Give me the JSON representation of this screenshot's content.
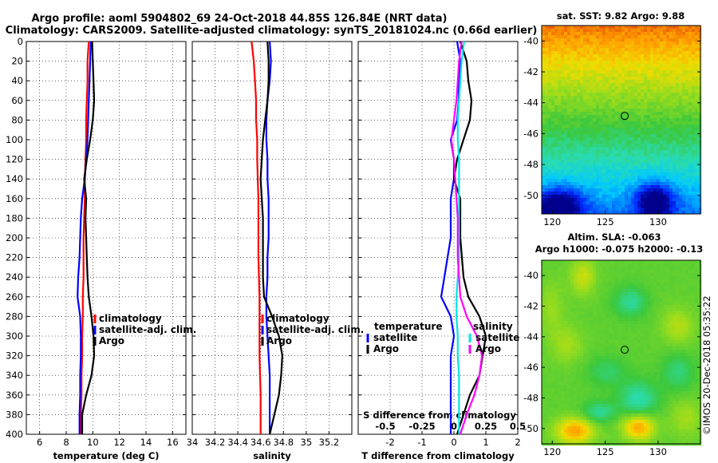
{
  "header": {
    "title_line1": "Argo profile: aoml 5904802_69 24-Oct-2018 44.85S 126.84E (NRT data)",
    "title_line2": "Climatology: CARS2009. Satellite-adjusted climatology: synTS_20181024.nc (0.66d earlier)"
  },
  "timestamp": "©IMOS 20-Dec-2018 05:35:22",
  "colors": {
    "climatology": "#ff0000",
    "satellite": "#0000ff",
    "argo": "#000000",
    "sal_climatology": "#00e5e5",
    "sal_satellite": "#ff00ff",
    "grid": "#000000"
  },
  "chart_data": [
    {
      "type": "line",
      "panel": "temperature",
      "xlabel": "temperature (deg C)",
      "ylabel": "",
      "xlim": [
        5,
        17
      ],
      "ylim": [
        400,
        0
      ],
      "xticks": [
        "6",
        "8",
        "10",
        "12",
        "14",
        "16"
      ],
      "xtick_values": [
        6,
        8,
        10,
        12,
        14,
        16
      ],
      "yticks": [
        "0",
        "20",
        "40",
        "60",
        "80",
        "100",
        "120",
        "140",
        "160",
        "180",
        "200",
        "220",
        "240",
        "260",
        "280",
        "300",
        "320",
        "340",
        "360",
        "380",
        "400"
      ],
      "ytick_values": [
        0,
        20,
        40,
        60,
        80,
        100,
        120,
        140,
        160,
        180,
        200,
        220,
        240,
        260,
        280,
        300,
        320,
        340,
        360,
        380,
        400
      ],
      "legend": [
        "climatology",
        "satellite-adj. clim.",
        "Argo"
      ],
      "legend_position": "center-right",
      "series": [
        {
          "name": "climatology",
          "color": "#ff0000",
          "x": [
            9.7,
            9.6,
            9.6,
            9.55,
            9.5,
            9.5,
            9.45,
            9.4,
            9.4,
            9.35,
            9.3,
            9.3,
            9.3,
            9.25,
            9.25,
            9.2,
            9.2,
            9.15,
            9.15,
            9.1,
            9.1
          ],
          "y": [
            0,
            20,
            40,
            60,
            80,
            100,
            120,
            140,
            160,
            180,
            200,
            220,
            240,
            260,
            280,
            300,
            320,
            340,
            360,
            380,
            400
          ]
        },
        {
          "name": "satellite-adj. clim.",
          "color": "#0000ff",
          "x": [
            9.85,
            9.8,
            9.75,
            9.7,
            9.65,
            9.6,
            9.5,
            9.4,
            9.2,
            9.1,
            9.05,
            9.0,
            8.9,
            8.85,
            9.05,
            9.1,
            9.1,
            9.05,
            9.05,
            9.0,
            9.0
          ],
          "y": [
            0,
            20,
            40,
            60,
            80,
            100,
            120,
            140,
            160,
            180,
            200,
            220,
            240,
            260,
            280,
            300,
            320,
            340,
            360,
            380,
            400
          ]
        },
        {
          "name": "Argo",
          "color": "#000000",
          "x": [
            9.95,
            10.0,
            10.05,
            10.1,
            10.0,
            9.8,
            9.55,
            9.35,
            9.5,
            9.45,
            9.5,
            9.55,
            9.6,
            9.7,
            9.9,
            10.05,
            10.1,
            9.9,
            9.5,
            9.2,
            9.2
          ],
          "y": [
            0,
            20,
            40,
            60,
            80,
            100,
            120,
            140,
            160,
            180,
            200,
            220,
            240,
            260,
            280,
            300,
            320,
            340,
            360,
            380,
            400
          ]
        }
      ]
    },
    {
      "type": "line",
      "panel": "salinity",
      "xlabel": "salinity",
      "ylabel": "",
      "xlim": [
        34.0,
        35.4
      ],
      "ylim": [
        400,
        0
      ],
      "xticks": [
        "34",
        "34.2",
        "34.4",
        "34.6",
        "34.8",
        "35",
        "35.2"
      ],
      "xtick_values": [
        34.0,
        34.2,
        34.4,
        34.6,
        34.8,
        35.0,
        35.2
      ],
      "legend": [
        "climatology",
        "satellite-adj. clim.",
        "Argo"
      ],
      "legend_position": "center-right",
      "series": [
        {
          "name": "climatology",
          "color": "#ff0000",
          "x": [
            34.52,
            34.54,
            34.55,
            34.56,
            34.56,
            34.57,
            34.57,
            34.575,
            34.58,
            34.58,
            34.58,
            34.58,
            34.585,
            34.59,
            34.59,
            34.59,
            34.59,
            34.595,
            34.6,
            34.6,
            34.6
          ],
          "y": [
            0,
            20,
            40,
            60,
            80,
            100,
            120,
            140,
            160,
            180,
            200,
            220,
            240,
            260,
            280,
            300,
            320,
            340,
            360,
            380,
            400
          ]
        },
        {
          "name": "satellite-adj. clim.",
          "color": "#0000ff",
          "x": [
            34.68,
            34.69,
            34.68,
            34.66,
            34.65,
            34.65,
            34.66,
            34.66,
            34.67,
            34.67,
            34.67,
            34.66,
            34.66,
            34.65,
            34.65,
            34.66,
            34.67,
            34.68,
            34.68,
            34.68,
            34.68
          ],
          "y": [
            0,
            20,
            40,
            60,
            80,
            100,
            120,
            140,
            160,
            180,
            200,
            220,
            240,
            260,
            280,
            300,
            320,
            340,
            360,
            380,
            400
          ]
        },
        {
          "name": "Argo",
          "color": "#000000",
          "x": [
            34.66,
            34.67,
            34.67,
            34.66,
            34.64,
            34.62,
            34.61,
            34.6,
            34.61,
            34.62,
            34.62,
            34.62,
            34.62,
            34.63,
            34.7,
            34.76,
            34.79,
            34.78,
            34.76,
            34.72,
            34.68
          ],
          "y": [
            0,
            20,
            40,
            60,
            80,
            100,
            120,
            140,
            160,
            180,
            200,
            220,
            240,
            260,
            280,
            300,
            320,
            340,
            360,
            380,
            400
          ]
        }
      ]
    },
    {
      "type": "line",
      "panel": "difference",
      "xlabel": "T difference from climatology",
      "x2label": "S difference from climatology",
      "xlim": [
        -3,
        2
      ],
      "ylim": [
        400,
        0
      ],
      "xticks": [
        "-2",
        "-1",
        "0",
        "1",
        "2"
      ],
      "xtick_values": [
        -2,
        -1,
        0,
        1,
        2
      ],
      "x2ticks": [
        "-0.5",
        "-0.25",
        "0",
        "0.25",
        "0.5"
      ],
      "x2tick_values": [
        -0.5,
        -0.25,
        0,
        0.25,
        0.5
      ],
      "legend_temperature_title": "temperature",
      "legend_salinity_title": "salinity",
      "legend": [
        "satellite",
        "Argo",
        "satellite",
        "Argo"
      ],
      "series": [
        {
          "name": "T satellite",
          "color": "#0000ff",
          "x": [
            0.1,
            0.2,
            0.15,
            0.15,
            0.1,
            -0.1,
            0.0,
            0.0,
            -0.1,
            -0.1,
            -0.1,
            -0.2,
            -0.3,
            -0.4,
            -0.1,
            0.0,
            -0.1,
            -0.1,
            -0.1,
            -0.1,
            -0.1
          ],
          "y": [
            0,
            20,
            40,
            60,
            80,
            100,
            120,
            140,
            160,
            180,
            200,
            220,
            240,
            260,
            280,
            300,
            320,
            340,
            360,
            380,
            400
          ]
        },
        {
          "name": "T Argo",
          "color": "#000000",
          "x": [
            0.2,
            0.4,
            0.45,
            0.55,
            0.5,
            0.3,
            0.1,
            0.0,
            0.2,
            0.2,
            0.2,
            0.25,
            0.3,
            0.45,
            0.8,
            1.0,
            0.9,
            0.8,
            0.5,
            0.3,
            0.1
          ],
          "y": [
            0,
            20,
            40,
            60,
            80,
            100,
            120,
            140,
            160,
            180,
            200,
            220,
            240,
            260,
            280,
            300,
            320,
            340,
            360,
            380,
            400
          ]
        },
        {
          "name": "S satellite",
          "color": "#00e5e5",
          "x": [
            0.08,
            0.06,
            0.05,
            0.04,
            0.03,
            0.03,
            0.04,
            0.04,
            0.04,
            0.04,
            0.04,
            0.04,
            0.03,
            0.02,
            0.02,
            0.03,
            0.03,
            0.04,
            0.04,
            0.04,
            0.04
          ],
          "y": [
            0,
            20,
            40,
            60,
            80,
            100,
            120,
            140,
            160,
            180,
            200,
            220,
            240,
            260,
            280,
            300,
            320,
            340,
            360,
            380,
            400
          ]
        },
        {
          "name": "S Argo",
          "color": "#ff00ff",
          "x": [
            0.06,
            0.04,
            0.03,
            0.02,
            0.0,
            -0.02,
            0.0,
            0.01,
            0.02,
            0.03,
            0.03,
            0.03,
            0.04,
            0.05,
            0.1,
            0.18,
            0.22,
            0.2,
            0.16,
            0.1,
            0.05
          ],
          "y": [
            0,
            20,
            40,
            60,
            80,
            100,
            120,
            140,
            160,
            180,
            200,
            220,
            240,
            260,
            280,
            300,
            320,
            340,
            360,
            380,
            400
          ]
        }
      ]
    },
    {
      "type": "heatmap",
      "panel": "sst-map",
      "title": "sat. SST: 9.82 Argo: 9.88",
      "xticks": [
        "120",
        "125",
        "130"
      ],
      "xtick_values": [
        120,
        125,
        130
      ],
      "yticks": [
        "-40",
        "-42",
        "-44",
        "-46",
        "-48",
        "-50"
      ],
      "ytick_values": [
        -40,
        -42,
        -44,
        -46,
        -48,
        -50
      ],
      "xlim": [
        119,
        134
      ],
      "ylim": [
        -51.2,
        -39
      ],
      "marker": {
        "lon": 126.84,
        "lat": -44.85
      }
    },
    {
      "type": "heatmap",
      "panel": "sla-map",
      "title": "Altim. SLA: -0.063",
      "subtitle": "Argo h1000: -0.075 h2000: -0.13",
      "xticks": [
        "120",
        "125",
        "130"
      ],
      "xtick_values": [
        120,
        125,
        130
      ],
      "yticks": [
        "-40",
        "-42",
        "-44",
        "-46",
        "-48",
        "-50"
      ],
      "ytick_values": [
        -40,
        -42,
        -44,
        -46,
        -48,
        -50
      ],
      "xlim": [
        119,
        134
      ],
      "ylim": [
        -51,
        -39
      ],
      "marker": {
        "lon": 126.84,
        "lat": -44.85
      }
    }
  ]
}
